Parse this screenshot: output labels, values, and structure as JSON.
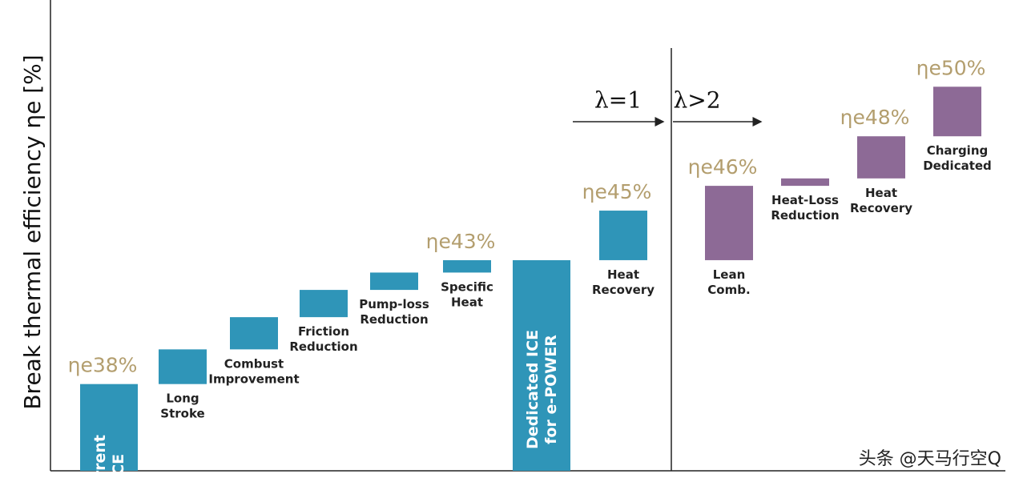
{
  "chart_data": {
    "type": "waterfall",
    "y_label": "Break thermal efficiency ηe [%]",
    "ylim": [
      34.5,
      53.5
    ],
    "series": [
      {
        "color": "#2f95b8",
        "section": "λ=1",
        "categories": [
          [
            "Current",
            "ICE"
          ],
          [
            "Long",
            "Stroke"
          ],
          [
            "Combust",
            "Improvement"
          ],
          [
            "Friction",
            "Reduction"
          ],
          [
            "Pump-loss",
            "Reduction"
          ],
          [
            "Specific",
            "Heat"
          ],
          [
            "Dedicated ICE",
            "for e-POWER"
          ],
          [
            "Heat",
            "Recovery"
          ]
        ],
        "values": [
          38,
          1.4,
          1.3,
          1.1,
          0.7,
          0.5,
          43,
          2
        ],
        "totals": [
          true,
          false,
          false,
          false,
          false,
          false,
          true,
          false
        ],
        "milestones": [
          {
            "value": 38,
            "label": "ηe38%"
          },
          {
            "value": 43,
            "label": "ηe43%"
          },
          {
            "value": 45,
            "label": "ηe45%"
          }
        ]
      },
      {
        "color": "#8d6a96",
        "section": "λ>2",
        "categories": [
          [
            "Lean",
            "Comb."
          ],
          [
            "Heat-Loss",
            "Reduction"
          ],
          [
            "Heat",
            "Recovery"
          ],
          [
            "Charging",
            "Dedicated"
          ]
        ],
        "values": [
          3,
          0.3,
          1.7,
          2
        ],
        "totals": [
          false,
          false,
          false,
          false
        ],
        "milestones": [
          {
            "value": 46,
            "label": "ηe46%"
          },
          {
            "value": 48,
            "label": "ηe48%"
          },
          {
            "value": 50,
            "label": "ηe50%"
          }
        ]
      }
    ],
    "watermark": "头条 @天马行空Q"
  }
}
